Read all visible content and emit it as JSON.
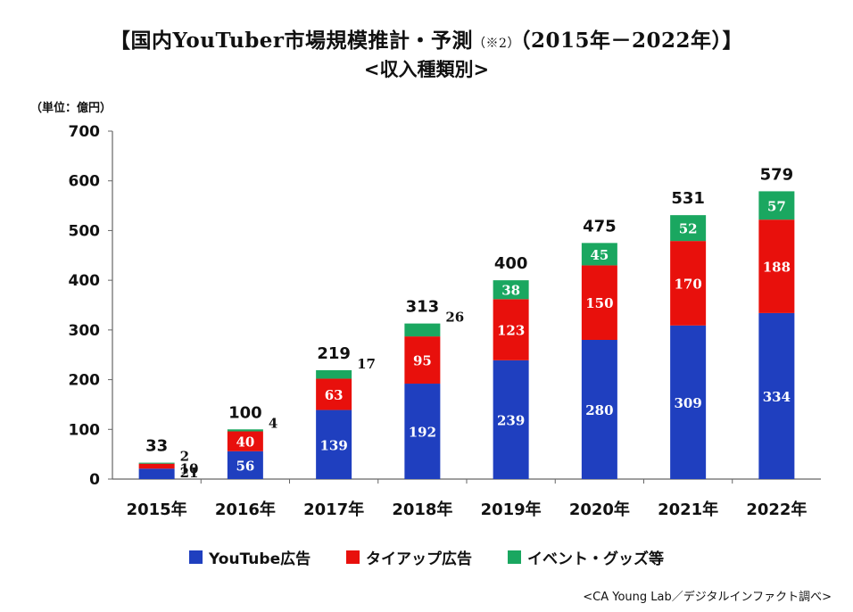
{
  "title": "【国内YouTuber市場規模推計・予測",
  "title_note": "（※2）",
  "title_period": "（2015年－2022年）】",
  "subtitle": "<収入種類別>",
  "unit_label": "（単位：億円）",
  "source": "<CA Young Lab／デジタルインファクト調べ>",
  "colors": {
    "youtube": "#1f3fbf",
    "tieup": "#e8100c",
    "event": "#1aa760"
  },
  "chart_data": {
    "type": "bar",
    "stacked": true,
    "categories": [
      "2015年",
      "2016年",
      "2017年",
      "2018年",
      "2019年",
      "2020年",
      "2021年",
      "2022年"
    ],
    "series": [
      {
        "name": "YouTube広告",
        "values": [
          21,
          56,
          139,
          192,
          239,
          280,
          309,
          334
        ]
      },
      {
        "name": "タイアップ広告",
        "values": [
          10,
          40,
          63,
          95,
          123,
          150,
          170,
          188
        ]
      },
      {
        "name": "イベント・グッズ等",
        "values": [
          2,
          4,
          17,
          26,
          38,
          45,
          52,
          57
        ]
      }
    ],
    "totals": [
      33,
      100,
      219,
      313,
      400,
      475,
      531,
      579
    ],
    "ylim": [
      0,
      700
    ],
    "yticks": [
      0,
      100,
      200,
      300,
      400,
      500,
      600,
      700
    ],
    "ylabel": "（単位：億円）",
    "grid": false,
    "legend_position": "bottom"
  }
}
